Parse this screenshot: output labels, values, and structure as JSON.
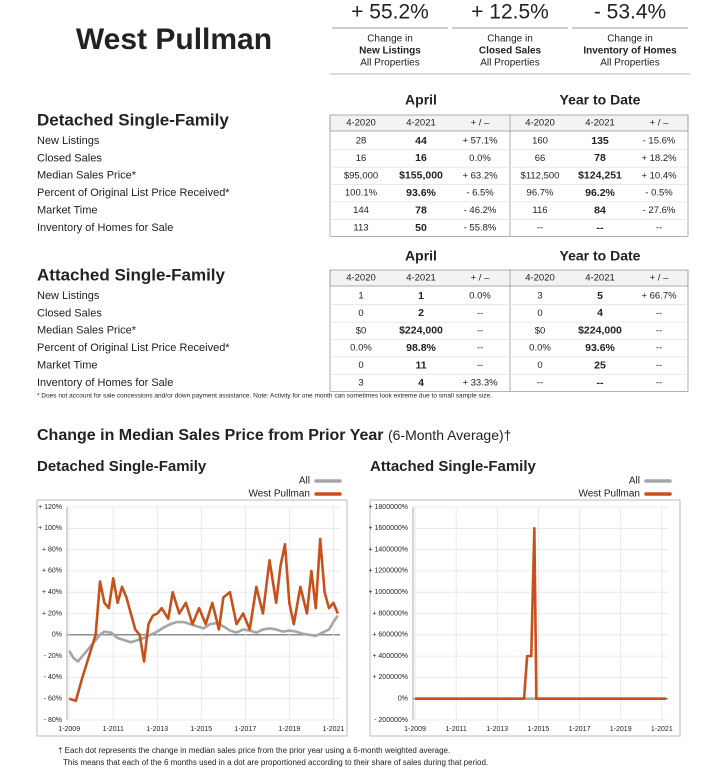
{
  "header": {
    "title": "West Pullman",
    "stats": [
      {
        "value": "+ 55.2%",
        "line1": "Change in",
        "line2": "New Listings",
        "line3": "All Properties"
      },
      {
        "value": "+ 12.5%",
        "line1": "Change in",
        "line2": "Closed Sales",
        "line3": "All Properties"
      },
      {
        "value": "- 53.4%",
        "line1": "Change in",
        "line2": "Inventory of Homes",
        "line3": "All Properties"
      }
    ]
  },
  "tables": [
    {
      "title": "Detached Single-Family",
      "group_headers": [
        "April",
        "Year to Date"
      ],
      "columns": [
        "4-2020",
        "4-2021",
        "+ / –",
        "4-2020",
        "4-2021",
        "+ / –"
      ],
      "rows": [
        [
          "New Listings",
          "28",
          "44",
          "+ 57.1%",
          "160",
          "135",
          "- 15.6%"
        ],
        [
          "Closed Sales",
          "16",
          "16",
          "0.0%",
          "66",
          "78",
          "+ 18.2%"
        ],
        [
          "Median Sales Price*",
          "$95,000",
          "$155,000",
          "+ 63.2%",
          "$112,500",
          "$124,251",
          "+ 10.4%"
        ],
        [
          "Percent of Original List Price Received*",
          "100.1%",
          "93.6%",
          "- 6.5%",
          "96.7%",
          "96.2%",
          "- 0.5%"
        ],
        [
          "Market Time",
          "144",
          "78",
          "- 46.2%",
          "116",
          "84",
          "- 27.6%"
        ],
        [
          "Inventory of Homes for Sale",
          "113",
          "50",
          "- 55.8%",
          "--",
          "--",
          "--"
        ]
      ]
    },
    {
      "title": "Attached Single-Family",
      "group_headers": [
        "April",
        "Year to Date"
      ],
      "columns": [
        "4-2020",
        "4-2021",
        "+ / –",
        "4-2020",
        "4-2021",
        "+ / –"
      ],
      "rows": [
        [
          "New Listings",
          "1",
          "1",
          "0.0%",
          "3",
          "5",
          "+ 66.7%"
        ],
        [
          "Closed Sales",
          "0",
          "2",
          "--",
          "0",
          "4",
          "--"
        ],
        [
          "Median Sales Price*",
          "$0",
          "$224,000",
          "--",
          "$0",
          "$224,000",
          "--"
        ],
        [
          "Percent of Original List Price Received*",
          "0.0%",
          "98.8%",
          "--",
          "0.0%",
          "93.6%",
          "--"
        ],
        [
          "Market Time",
          "0",
          "11",
          "--",
          "0",
          "25",
          "--"
        ],
        [
          "Inventory of Homes for Sale",
          "3",
          "4",
          "+ 33.3%",
          "--",
          "--",
          "--"
        ]
      ]
    }
  ],
  "table_note": "* Does not account for sale concessions and/or down payment assistance. Note: Activity for one month can sometimes look extreme due to small sample size.",
  "section_title": "Change in Median Sales Price from Prior Year",
  "section_subtitle": "(6-Month Average)†",
  "chart_data": [
    {
      "type": "line",
      "title": "Detached Single-Family",
      "grid": true,
      "xlim": [
        2008.9,
        2021.3
      ],
      "ylim": [
        -80,
        120
      ],
      "xticks": [
        {
          "value": 2009,
          "label": "1-2009"
        },
        {
          "value": 2011,
          "label": "1-2011"
        },
        {
          "value": 2013,
          "label": "1-2013"
        },
        {
          "value": 2015,
          "label": "1-2015"
        },
        {
          "value": 2017,
          "label": "1-2017"
        },
        {
          "value": 2019,
          "label": "1-2019"
        },
        {
          "value": 2021,
          "label": "1-2021"
        }
      ],
      "yticks": [
        {
          "value": -80,
          "label": "- 80%"
        },
        {
          "value": -60,
          "label": "- 60%"
        },
        {
          "value": -40,
          "label": "- 40%"
        },
        {
          "value": -20,
          "label": "- 20%"
        },
        {
          "value": 0,
          "label": "0%"
        },
        {
          "value": 20,
          "label": "+ 20%"
        },
        {
          "value": 40,
          "label": "+ 40%"
        },
        {
          "value": 60,
          "label": "+ 60%"
        },
        {
          "value": 80,
          "label": "+ 80%"
        },
        {
          "value": 100,
          "label": "+ 100%"
        },
        {
          "value": 120,
          "label": "+ 120%"
        }
      ],
      "series": [
        {
          "name": "All",
          "color": "#a6a6a6",
          "x": [
            2009.0,
            2009.2,
            2009.4,
            2009.6,
            2009.8,
            2010.0,
            2010.2,
            2010.4,
            2010.6,
            2010.9,
            2011.2,
            2011.5,
            2011.8,
            2012.1,
            2012.4,
            2012.7,
            2013.0,
            2013.3,
            2013.6,
            2013.9,
            2014.2,
            2014.5,
            2014.8,
            2015.1,
            2015.4,
            2015.7,
            2016.0,
            2016.3,
            2016.6,
            2016.9,
            2017.2,
            2017.5,
            2017.8,
            2018.1,
            2018.4,
            2018.7,
            2019.0,
            2019.3,
            2019.6,
            2019.9,
            2020.2,
            2020.5,
            2020.8,
            2021.0,
            2021.2
          ],
          "values": [
            -15,
            -22,
            -25,
            -20,
            -15,
            -10,
            -5,
            0,
            3,
            2,
            -3,
            -5,
            -7,
            -5,
            -3,
            0,
            3,
            7,
            10,
            12,
            12,
            10,
            8,
            6,
            10,
            11,
            8,
            4,
            2,
            5,
            4,
            2,
            5,
            6,
            5,
            3,
            4,
            3,
            1,
            0,
            -1,
            2,
            5,
            12,
            18
          ]
        },
        {
          "name": "West Pullman",
          "color": "#c8511b",
          "x": [
            2009.0,
            2009.3,
            2009.6,
            2009.9,
            2010.2,
            2010.4,
            2010.6,
            2010.8,
            2011.0,
            2011.2,
            2011.4,
            2011.6,
            2011.8,
            2012.0,
            2012.2,
            2012.4,
            2012.6,
            2012.8,
            2013.0,
            2013.2,
            2013.5,
            2013.7,
            2014.0,
            2014.3,
            2014.6,
            2014.9,
            2015.2,
            2015.5,
            2015.8,
            2016.0,
            2016.3,
            2016.6,
            2016.9,
            2017.2,
            2017.5,
            2017.8,
            2018.1,
            2018.4,
            2018.6,
            2018.8,
            2019.0,
            2019.2,
            2019.5,
            2019.8,
            2020.0,
            2020.2,
            2020.4,
            2020.6,
            2020.8,
            2021.0,
            2021.2
          ],
          "values": [
            -60,
            -62,
            -40,
            -20,
            0,
            50,
            30,
            25,
            53,
            30,
            45,
            35,
            20,
            5,
            0,
            -25,
            10,
            18,
            20,
            25,
            15,
            40,
            20,
            30,
            10,
            25,
            10,
            30,
            5,
            35,
            40,
            10,
            20,
            5,
            45,
            20,
            70,
            30,
            65,
            85,
            30,
            10,
            45,
            20,
            60,
            25,
            90,
            40,
            25,
            30,
            20
          ]
        }
      ]
    },
    {
      "type": "line",
      "title": "Attached Single-Family",
      "grid": true,
      "xlim": [
        2008.9,
        2021.3
      ],
      "ylim": [
        -200000,
        1800000
      ],
      "xticks": [
        {
          "value": 2009,
          "label": "1-2009"
        },
        {
          "value": 2011,
          "label": "1-2011"
        },
        {
          "value": 2013,
          "label": "1-2013"
        },
        {
          "value": 2015,
          "label": "1-2015"
        },
        {
          "value": 2017,
          "label": "1-2017"
        },
        {
          "value": 2019,
          "label": "1-2019"
        },
        {
          "value": 2021,
          "label": "1-2021"
        }
      ],
      "yticks": [
        {
          "value": -200000,
          "label": "- 200000%"
        },
        {
          "value": 0,
          "label": "0%"
        },
        {
          "value": 200000,
          "label": "+ 200000%"
        },
        {
          "value": 400000,
          "label": "+ 400000%"
        },
        {
          "value": 600000,
          "label": "+ 600000%"
        },
        {
          "value": 800000,
          "label": "+ 800000%"
        },
        {
          "value": 1000000,
          "label": "+ 1000000%"
        },
        {
          "value": 1200000,
          "label": "+ 1200000%"
        },
        {
          "value": 1400000,
          "label": "+ 1400000%"
        },
        {
          "value": 1600000,
          "label": "+ 1600000%"
        },
        {
          "value": 1800000,
          "label": "+ 1800000%"
        }
      ],
      "series": [
        {
          "name": "All",
          "color": "#a6a6a6",
          "x": [
            2009.0,
            2021.2
          ],
          "values": [
            0,
            0
          ]
        },
        {
          "name": "West Pullman",
          "color": "#c8511b",
          "x": [
            2009.0,
            2014.3,
            2014.45,
            2014.65,
            2014.8,
            2014.9,
            2021.2
          ],
          "values": [
            0,
            0,
            400000,
            400000,
            1600000,
            0,
            0
          ]
        }
      ]
    }
  ],
  "footnote": [
    "† Each dot represents the change in median sales price from the prior year using a 6-month weighted average.",
    "This means that each of the 6 months used in a dot are proportioned according to their share of sales during that period."
  ]
}
